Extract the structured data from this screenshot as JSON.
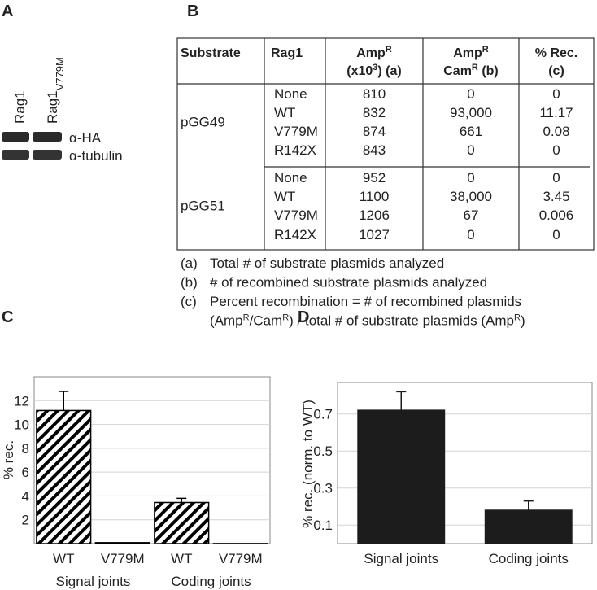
{
  "panels": [
    "A",
    "B",
    "C",
    "D"
  ],
  "blot": {
    "lanes": [
      [
        {
          "text": "Rag1"
        }
      ],
      [
        {
          "text": "Rag1"
        },
        {
          "sub": "V779M"
        }
      ]
    ],
    "bands": [
      "α-HA",
      "α-tubulin"
    ]
  },
  "table": {
    "header": [
      [
        [
          {
            "text": "Substrate"
          }
        ]
      ],
      [
        [
          {
            "text": "Rag1"
          }
        ]
      ],
      [
        [
          {
            "text": "Amp"
          },
          {
            "sup": "R"
          }
        ],
        [
          {
            "text": "(x10"
          },
          {
            "sup": "3"
          },
          {
            "text": ") (a)"
          }
        ]
      ],
      [
        [
          {
            "text": "Amp"
          },
          {
            "sup": "R"
          }
        ],
        [
          {
            "text": "Cam"
          },
          {
            "sup": "R"
          },
          {
            "text": " (b)"
          }
        ]
      ],
      [
        [
          {
            "text": "% Rec."
          }
        ],
        [
          {
            "text": "(c)"
          }
        ]
      ]
    ],
    "groups": [
      {
        "substrate": "pGG49",
        "rows": [
          [
            "None",
            "810",
            "0",
            "0"
          ],
          [
            "WT",
            "832",
            "93,000",
            "11.17"
          ],
          [
            "V779M",
            "874",
            "661",
            "0.08"
          ],
          [
            "R142X",
            "843",
            "0",
            "0"
          ]
        ]
      },
      {
        "substrate": "pGG51",
        "rows": [
          [
            "None",
            "952",
            "0",
            "0"
          ],
          [
            "WT",
            "1100",
            "38,000",
            "3.45"
          ],
          [
            "V779M",
            "1206",
            "67",
            "0.006"
          ],
          [
            "R142X",
            "1027",
            "0",
            "0"
          ]
        ]
      }
    ],
    "footnotes": [
      {
        "label": "(a)",
        "lines": [
          [
            {
              "text": "Total # of substrate plasmids analyzed"
            }
          ]
        ]
      },
      {
        "label": "(b)",
        "lines": [
          [
            {
              "text": "# of recombined substrate plasmids analyzed"
            }
          ]
        ]
      },
      {
        "label": "(c)",
        "lines": [
          [
            {
              "text": "Percent recombination = # of recombined plasmids"
            }
          ],
          [
            {
              "text": "(Amp"
            },
            {
              "sup": "R"
            },
            {
              "text": "/Cam"
            },
            {
              "sup": "R"
            },
            {
              "text": ") / total # of substrate plasmids (Amp"
            },
            {
              "sup": "R"
            },
            {
              "text": ")"
            }
          ]
        ]
      }
    ]
  },
  "chart_data": [
    {
      "type": "bar",
      "y_label": "% rec.",
      "categories": [
        "WT",
        "V779M",
        "WT",
        "V779M"
      ],
      "groups": [
        "Signal joints",
        "Coding joints"
      ],
      "values": [
        11.17,
        0.08,
        3.45,
        0.006
      ],
      "errors": [
        1.6,
        null,
        0.35,
        null
      ],
      "color": "#000000",
      "hatch": true,
      "ylim": [
        0,
        14
      ],
      "yticks": [
        2,
        4,
        6,
        8,
        10,
        12
      ],
      "grid": true
    },
    {
      "type": "bar",
      "y_label": "% rec. (norm. to WT)",
      "categories": [
        "Signal joints",
        "Coding joints"
      ],
      "values": [
        0.72,
        0.18
      ],
      "errors": [
        0.1,
        0.05
      ],
      "color": "#1c1c1c",
      "hatch": false,
      "ylim": [
        0,
        0.87
      ],
      "yticks": [
        0.1,
        0.3,
        0.5,
        0.7
      ],
      "grid": true
    }
  ]
}
